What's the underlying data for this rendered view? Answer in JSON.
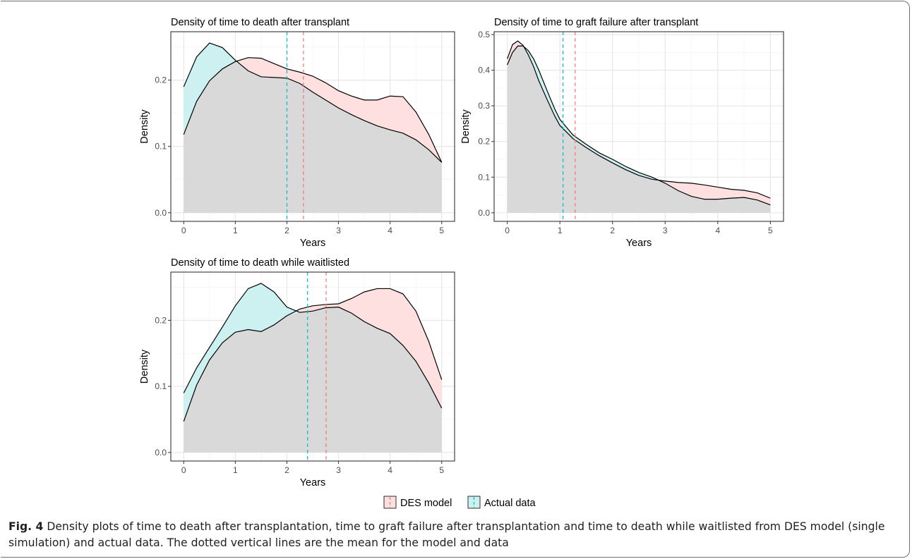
{
  "chart_data": [
    {
      "type": "area",
      "title": "Density of time to death after transplant",
      "xlabel": "Years",
      "ylabel": "Density",
      "xlim": [
        -0.25,
        5.25
      ],
      "ylim": [
        -0.013,
        0.273
      ],
      "xticks": [
        "0",
        "1",
        "2",
        "3",
        "4",
        "5"
      ],
      "yticks": [
        "0.0",
        "0.1",
        "0.2"
      ],
      "grid": true,
      "series": [
        {
          "name": "DES model",
          "x": [
            0,
            0.25,
            0.5,
            0.75,
            1.0,
            1.25,
            1.5,
            1.75,
            2.0,
            2.25,
            2.5,
            2.75,
            3.0,
            3.25,
            3.5,
            3.75,
            4.0,
            4.25,
            4.5,
            4.75,
            5.0
          ],
          "y": [
            0.118,
            0.168,
            0.199,
            0.217,
            0.228,
            0.234,
            0.233,
            0.225,
            0.217,
            0.212,
            0.206,
            0.196,
            0.184,
            0.176,
            0.17,
            0.17,
            0.176,
            0.175,
            0.152,
            0.118,
            0.076
          ],
          "mean": 2.32
        },
        {
          "name": "Actual data",
          "x": [
            0,
            0.25,
            0.5,
            0.75,
            1.0,
            1.25,
            1.5,
            1.75,
            2.0,
            2.25,
            2.5,
            2.75,
            3.0,
            3.25,
            3.5,
            3.75,
            4.0,
            4.25,
            4.5,
            4.75,
            5.0
          ],
          "y": [
            0.19,
            0.235,
            0.256,
            0.249,
            0.23,
            0.214,
            0.205,
            0.204,
            0.203,
            0.195,
            0.182,
            0.17,
            0.158,
            0.148,
            0.139,
            0.131,
            0.125,
            0.12,
            0.11,
            0.095,
            0.076
          ],
          "mean": 2.0
        }
      ]
    },
    {
      "type": "area",
      "title": "Density of time to graft failure after transplant",
      "xlabel": "Years",
      "ylabel": "Density",
      "xlim": [
        -0.25,
        5.25
      ],
      "ylim": [
        -0.024,
        0.508
      ],
      "xticks": [
        "0",
        "1",
        "2",
        "3",
        "4",
        "5"
      ],
      "yticks": [
        "0.0",
        "0.1",
        "0.2",
        "0.3",
        "0.4",
        "0.5"
      ],
      "grid": true,
      "series": [
        {
          "name": "DES model",
          "x": [
            0,
            0.1,
            0.2,
            0.3,
            0.4,
            0.5,
            0.6,
            0.75,
            0.9,
            1.0,
            1.25,
            1.5,
            1.75,
            2.0,
            2.25,
            2.5,
            2.75,
            3.0,
            3.25,
            3.5,
            3.75,
            4.0,
            4.25,
            4.5,
            4.75,
            5.0
          ],
          "y": [
            0.432,
            0.472,
            0.482,
            0.47,
            0.443,
            0.41,
            0.37,
            0.32,
            0.272,
            0.245,
            0.208,
            0.183,
            0.16,
            0.14,
            0.121,
            0.105,
            0.094,
            0.089,
            0.085,
            0.083,
            0.078,
            0.072,
            0.066,
            0.063,
            0.056,
            0.041
          ],
          "mean": 1.29
        },
        {
          "name": "Actual data",
          "x": [
            0,
            0.1,
            0.2,
            0.3,
            0.4,
            0.5,
            0.6,
            0.75,
            0.9,
            1.0,
            1.25,
            1.5,
            1.75,
            2.0,
            2.25,
            2.5,
            2.75,
            3.0,
            3.25,
            3.5,
            3.75,
            4.0,
            4.25,
            4.5,
            4.75,
            5.0
          ],
          "y": [
            0.415,
            0.45,
            0.468,
            0.468,
            0.455,
            0.432,
            0.4,
            0.345,
            0.292,
            0.262,
            0.218,
            0.192,
            0.168,
            0.15,
            0.13,
            0.113,
            0.1,
            0.083,
            0.062,
            0.046,
            0.038,
            0.038,
            0.041,
            0.043,
            0.036,
            0.022
          ],
          "mean": 1.06
        }
      ]
    },
    {
      "type": "area",
      "title": "Density of time to death while waitlisted",
      "xlabel": "Years",
      "ylabel": "Density",
      "xlim": [
        -0.25,
        5.25
      ],
      "ylim": [
        -0.013,
        0.273
      ],
      "xticks": [
        "0",
        "1",
        "2",
        "3",
        "4",
        "5"
      ],
      "yticks": [
        "0.0",
        "0.1",
        "0.2"
      ],
      "grid": true,
      "series": [
        {
          "name": "DES model",
          "x": [
            0,
            0.25,
            0.5,
            0.75,
            1.0,
            1.25,
            1.5,
            1.75,
            2.0,
            2.25,
            2.5,
            2.75,
            3.0,
            3.25,
            3.5,
            3.75,
            4.0,
            4.25,
            4.5,
            4.75,
            5.0
          ],
          "y": [
            0.047,
            0.102,
            0.14,
            0.166,
            0.182,
            0.186,
            0.183,
            0.193,
            0.207,
            0.217,
            0.222,
            0.224,
            0.225,
            0.233,
            0.243,
            0.248,
            0.248,
            0.24,
            0.214,
            0.168,
            0.11
          ],
          "mean": 2.76
        },
        {
          "name": "Actual data",
          "x": [
            0,
            0.25,
            0.5,
            0.75,
            1.0,
            1.25,
            1.5,
            1.75,
            2.0,
            2.25,
            2.5,
            2.75,
            3.0,
            3.25,
            3.5,
            3.75,
            4.0,
            4.25,
            4.5,
            4.75,
            5.0
          ],
          "y": [
            0.09,
            0.128,
            0.159,
            0.19,
            0.222,
            0.248,
            0.256,
            0.243,
            0.22,
            0.212,
            0.214,
            0.219,
            0.22,
            0.211,
            0.198,
            0.188,
            0.18,
            0.162,
            0.138,
            0.105,
            0.067
          ],
          "mean": 2.4
        }
      ]
    }
  ],
  "legend": {
    "placement": "bottom",
    "items": [
      {
        "label": "DES model",
        "fill": "#fde0df",
        "line": "#f8766d"
      },
      {
        "label": "Actual data",
        "fill": "#cdf0f0",
        "line": "#00bfc4"
      }
    ]
  },
  "colors": {
    "overlap": "#d9d9d9",
    "des_fill": "#fde0df",
    "actual_fill": "#cdf0f0",
    "des_line": "#f8766d",
    "actual_line": "#00bfc4"
  },
  "caption": {
    "label": "Fig. 4",
    "text": " Density plots of time to death after transplantation, time to graft failure after transplantation and time to death while waitlisted from DES model (single simulation) and actual data. The dotted vertical lines are the mean for the model and data"
  }
}
